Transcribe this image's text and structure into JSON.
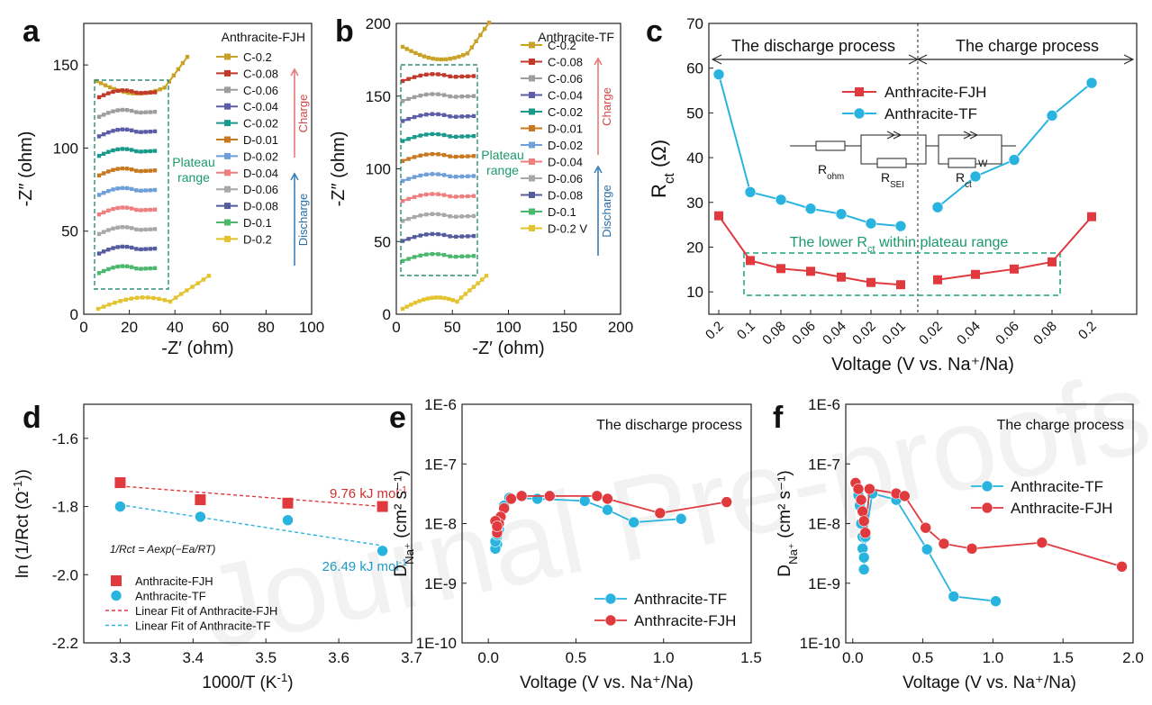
{
  "figure": {
    "watermark": "Journal Pre-proofs"
  },
  "chart_data": [
    {
      "id": "a",
      "label": "a",
      "type": "line",
      "title": "Anthracite-FJH",
      "xlabel": "-Z′ (ohm)",
      "ylabel": "-Z″ (ohm)",
      "xlim": [
        0,
        100
      ],
      "ylim": [
        0,
        175
      ],
      "xticks": [
        0,
        20,
        40,
        60,
        80,
        100
      ],
      "yticks": [
        0,
        50,
        100,
        150
      ],
      "annotation": "Plateau range",
      "arrow_up": "Charge",
      "arrow_down": "Discharge",
      "legend": [
        "C-0.2",
        "C-0.08",
        "C-0.06",
        "C-0.04",
        "C-0.02",
        "D-0.01",
        "D-0.02",
        "D-0.04",
        "D-0.06",
        "D-0.08",
        "D-0.1",
        "D-0.2"
      ],
      "colors": [
        "#c9a227",
        "#c0392b",
        "#9e9e9e",
        "#5b5ea6",
        "#1a9a8a",
        "#c8781e",
        "#6f9fd8",
        "#ef7f7f",
        "#a8a8a8",
        "#555c9e",
        "#4cb86e",
        "#e3c32e"
      ]
    },
    {
      "id": "b",
      "label": "b",
      "type": "line",
      "title": "Anthracite-TF",
      "xlabel": "-Z′ (ohm)",
      "ylabel": "-Z″ (ohm)",
      "xlim": [
        0,
        200
      ],
      "ylim": [
        0,
        200
      ],
      "xticks": [
        0,
        50,
        100,
        150,
        200
      ],
      "yticks": [
        0,
        50,
        100,
        150,
        200
      ],
      "annotation": "Plateau range",
      "arrow_up": "Charge",
      "arrow_down": "Discharge",
      "legend": [
        "C-0.2",
        "C-0.08",
        "C-0.06",
        "C-0.04",
        "C-0.02",
        "D-0.01",
        "D-0.02",
        "D-0.04",
        "D-0.06",
        "D-0.08",
        "D-0.1",
        "D-0.2 V"
      ],
      "colors": [
        "#c9a227",
        "#c0392b",
        "#9e9e9e",
        "#5b5ea6",
        "#1a9a8a",
        "#c8781e",
        "#6f9fd8",
        "#ef7f7f",
        "#a8a8a8",
        "#555c9e",
        "#4cb86e",
        "#e3c32e"
      ]
    },
    {
      "id": "c",
      "label": "c",
      "type": "line",
      "xlabel": "Voltage (V vs. Na⁺/Na)",
      "ylabel": "R",
      "ylabel_sub": "ct",
      "ylabel_unit": "(Ω)",
      "ylim": [
        5,
        70
      ],
      "yticks": [
        10,
        20,
        30,
        40,
        50,
        60,
        70
      ],
      "categories": [
        "0.2",
        "0.1",
        "0.08",
        "0.06",
        "0.04",
        "0.02",
        "0.01",
        "0.02",
        "0.04",
        "0.06",
        "0.08",
        "0.2"
      ],
      "discharge_label": "The discharge process",
      "charge_label": "The charge process",
      "plateau_label": "The lower R",
      "plateau_label_sub": "ct",
      "plateau_label_tail": " within plateau range",
      "circuit_labels": [
        "R",
        "ohm",
        "R",
        "SEI",
        "R",
        "ct",
        "W"
      ],
      "series": [
        {
          "name": "Anthracite-FJH",
          "color": "#e0393e",
          "marker": "square",
          "values": [
            27.0,
            17.0,
            15.2,
            14.6,
            13.3,
            12.1,
            11.6,
            12.7,
            13.9,
            15.1,
            16.7,
            26.8
          ]
        },
        {
          "name": "Anthracite-TF",
          "color": "#29b4e0",
          "marker": "circle",
          "values": [
            58.6,
            32.3,
            30.6,
            28.6,
            27.4,
            25.3,
            24.7,
            28.9,
            35.8,
            39.5,
            49.4,
            56.7
          ]
        }
      ]
    },
    {
      "id": "d",
      "label": "d",
      "type": "scatter",
      "xlabel": "1000/T (K",
      "xlabel_sup": "-1",
      "xlabel_tail": ")",
      "ylabel": "ln (1/Rct (Ω",
      "ylabel_sup": "-1",
      "ylabel_tail": "))",
      "xlim": [
        3.25,
        3.7
      ],
      "ylim": [
        -2.2,
        -1.5
      ],
      "xticks": [
        3.3,
        3.4,
        3.5,
        3.6,
        3.7
      ],
      "yticks": [
        -2.2,
        -2.0,
        -1.8,
        -1.6
      ],
      "equation": "1/Rct = Aexp(−Ea/RT)",
      "series": [
        {
          "name": "Anthracite-FJH",
          "color": "#e0393e",
          "marker": "square",
          "x": [
            3.3,
            3.41,
            3.53,
            3.66
          ],
          "y": [
            -1.73,
            -1.78,
            -1.79,
            -1.8
          ],
          "fit_name": "Linear Fit of Anthracite-FJH",
          "fit": [
            [
              3.3,
              -1.74
            ],
            [
              3.66,
              -1.8
            ]
          ],
          "energy": "9.76 kJ mol",
          "energy_sup": "-1"
        },
        {
          "name": "Anthracite-TF",
          "color": "#29b4e0",
          "marker": "circle",
          "x": [
            3.3,
            3.41,
            3.53,
            3.66
          ],
          "y": [
            -1.8,
            -1.83,
            -1.84,
            -1.93
          ],
          "fit_name": "Linear Fit of Anthracite-TF",
          "fit": [
            [
              3.3,
              -1.795
            ],
            [
              3.66,
              -1.915
            ]
          ],
          "energy": "26.49 kJ mol",
          "energy_sup": "-1"
        }
      ]
    },
    {
      "id": "e",
      "label": "e",
      "type": "line",
      "title": "The discharge process",
      "xlabel": "Voltage (V vs. Na⁺/Na)",
      "ylabel": "D",
      "ylabel_sub": "Na⁺",
      "ylabel_unit": "(cm² s⁻¹)",
      "xlim": [
        -0.15,
        1.5
      ],
      "xticks": [
        0.0,
        0.5,
        1.0,
        1.5
      ],
      "xtick_labels": [
        "0.0",
        "0.5",
        "1.0",
        "1.5"
      ],
      "ylim_log": [
        1e-10,
        1e-06
      ],
      "ytick_labels": [
        "1E-10",
        "1E-9",
        "1E-8",
        "1E-7",
        "1E-6"
      ],
      "series": [
        {
          "name": "Anthracite-TF",
          "color": "#29b4e0",
          "x": [
            1.1,
            0.83,
            0.68,
            0.55,
            0.28,
            0.12,
            0.09,
            0.07,
            0.06,
            0.05,
            0.05,
            0.04,
            0.04,
            0.05
          ],
          "y": [
            1.2e-08,
            1.05e-08,
            1.7e-08,
            2.4e-08,
            2.6e-08,
            2.7e-08,
            2e-08,
            1.3e-08,
            8e-09,
            6e-09,
            4.5e-09,
            3.8e-09,
            5e-09,
            6.5e-09
          ]
        },
        {
          "name": "Anthracite-FJH",
          "color": "#e0393e",
          "x": [
            1.36,
            0.98,
            0.68,
            0.62,
            0.35,
            0.19,
            0.13,
            0.09,
            0.07,
            0.06,
            0.05,
            0.05,
            0.04,
            0.05
          ],
          "y": [
            2.3e-08,
            1.5e-08,
            2.6e-08,
            2.9e-08,
            2.9e-08,
            2.9e-08,
            2.6e-08,
            1.8e-08,
            1.3e-08,
            1e-08,
            8e-09,
            7e-09,
            1.1e-08,
            9e-09
          ]
        }
      ]
    },
    {
      "id": "f",
      "label": "f",
      "type": "line",
      "title": "The charge process",
      "xlabel": "Voltage (V vs. Na⁺/Na)",
      "ylabel": "D",
      "ylabel_sub": "Na⁺",
      "ylabel_unit": "(cm² s⁻¹)",
      "xlim": [
        -0.05,
        2.0
      ],
      "xticks": [
        0.0,
        0.5,
        1.0,
        1.5,
        2.0
      ],
      "xtick_labels": [
        "0.0",
        "0.5",
        "1.0",
        "1.5",
        "2.0"
      ],
      "ylim_log": [
        1e-10,
        1e-06
      ],
      "ytick_labels": [
        "1E-10",
        "1E-9",
        "1E-8",
        "1E-7",
        "1E-6"
      ],
      "series": [
        {
          "name": "Anthracite-TF",
          "color": "#29b4e0",
          "x": [
            0.04,
            0.05,
            0.06,
            0.07,
            0.07,
            0.08,
            0.08,
            0.09,
            0.14,
            0.31,
            0.53,
            0.72,
            1.02
          ],
          "y": [
            3e-08,
            2e-08,
            1e-08,
            6e-09,
            3.8e-09,
            2.7e-09,
            1.7e-09,
            6e-09,
            3.2e-08,
            2.5e-08,
            3.7e-09,
            6e-10,
            5e-10
          ]
        },
        {
          "name": "Anthracite-FJH",
          "color": "#e0393e",
          "x": [
            0.02,
            0.04,
            0.06,
            0.07,
            0.08,
            0.09,
            0.12,
            0.31,
            0.37,
            0.52,
            0.65,
            0.85,
            1.35,
            1.92
          ],
          "y": [
            4.8e-08,
            3.8e-08,
            2.5e-08,
            1.6e-08,
            1.1e-08,
            7e-09,
            3.8e-08,
            3.2e-08,
            2.9e-08,
            8.5e-09,
            4.6e-09,
            3.8e-09,
            4.8e-09,
            1.9e-09
          ]
        }
      ]
    }
  ]
}
